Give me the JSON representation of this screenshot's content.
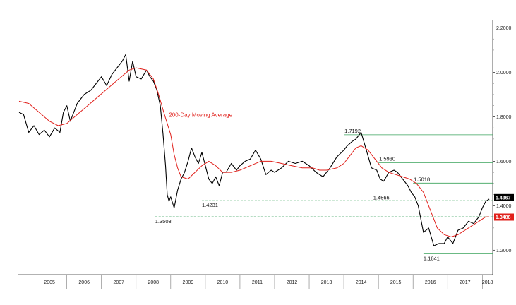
{
  "chart_data": {
    "type": "line",
    "title": "",
    "xlabel": "",
    "ylabel": "",
    "xlim": [
      2004.6,
      2018.3
    ],
    "ylim": [
      1.09,
      2.23
    ],
    "y_ticks": [
      {
        "value": 1.2,
        "label": "1.2000"
      },
      {
        "value": 1.4,
        "label": "1.4000"
      },
      {
        "value": 1.6,
        "label": "1.6000"
      },
      {
        "value": 1.8,
        "label": "1.8000"
      },
      {
        "value": 2.0,
        "label": "2.0000"
      },
      {
        "value": 2.2,
        "label": "2.2000"
      }
    ],
    "x_years": [
      "2005",
      "2006",
      "2007",
      "2008",
      "2009",
      "2010",
      "2011",
      "2012",
      "2013",
      "2014",
      "2015",
      "2016",
      "2017",
      "2018"
    ],
    "grid": false,
    "axis_position": "right",
    "series": [
      {
        "name": "",
        "color": "#000000",
        "x": [
          2004.62,
          2004.75,
          2004.9,
          2005.05,
          2005.2,
          2005.35,
          2005.5,
          2005.65,
          2005.8,
          2005.9,
          2006.0,
          2006.1,
          2006.3,
          2006.5,
          2006.7,
          2006.9,
          2007.0,
          2007.15,
          2007.3,
          2007.45,
          2007.6,
          2007.7,
          2007.8,
          2007.9,
          2008.0,
          2008.15,
          2008.3,
          2008.4,
          2008.5,
          2008.6,
          2008.7,
          2008.78,
          2008.85,
          2008.9,
          2008.95,
          2009.0,
          2009.1,
          2009.2,
          2009.3,
          2009.4,
          2009.5,
          2009.6,
          2009.7,
          2009.8,
          2009.9,
          2010.0,
          2010.1,
          2010.2,
          2010.3,
          2010.4,
          2010.5,
          2010.6,
          2010.75,
          2010.9,
          2011.0,
          2011.15,
          2011.3,
          2011.45,
          2011.6,
          2011.75,
          2011.9,
          2012.0,
          2012.2,
          2012.4,
          2012.6,
          2012.8,
          2013.0,
          2013.2,
          2013.4,
          2013.6,
          2013.8,
          2014.0,
          2014.1,
          2014.25,
          2014.35,
          2014.5,
          2014.65,
          2014.8,
          2014.95,
          2015.05,
          2015.15,
          2015.3,
          2015.45,
          2015.55,
          2015.7,
          2015.85,
          2015.95,
          2016.05,
          2016.15,
          2016.3,
          2016.45,
          2016.6,
          2016.75,
          2016.9,
          2017.0,
          2017.15,
          2017.3,
          2017.45,
          2017.6,
          2017.75,
          2017.9,
          2018.0,
          2018.1,
          2018.2
        ],
        "y": [
          1.82,
          1.81,
          1.73,
          1.76,
          1.72,
          1.74,
          1.71,
          1.75,
          1.73,
          1.82,
          1.85,
          1.78,
          1.86,
          1.9,
          1.92,
          1.96,
          1.98,
          1.94,
          1.99,
          2.02,
          2.05,
          2.08,
          1.96,
          2.05,
          1.98,
          1.97,
          2.01,
          1.98,
          1.96,
          1.92,
          1.85,
          1.72,
          1.58,
          1.45,
          1.42,
          1.44,
          1.39,
          1.47,
          1.52,
          1.55,
          1.6,
          1.66,
          1.62,
          1.59,
          1.64,
          1.58,
          1.52,
          1.5,
          1.53,
          1.49,
          1.55,
          1.55,
          1.59,
          1.56,
          1.58,
          1.6,
          1.61,
          1.65,
          1.61,
          1.54,
          1.56,
          1.55,
          1.57,
          1.6,
          1.59,
          1.6,
          1.58,
          1.55,
          1.53,
          1.57,
          1.62,
          1.65,
          1.67,
          1.69,
          1.7,
          1.73,
          1.65,
          1.57,
          1.56,
          1.52,
          1.51,
          1.55,
          1.56,
          1.55,
          1.52,
          1.49,
          1.46,
          1.44,
          1.4,
          1.28,
          1.3,
          1.22,
          1.23,
          1.23,
          1.26,
          1.23,
          1.29,
          1.3,
          1.33,
          1.32,
          1.35,
          1.39,
          1.42,
          1.43
        ]
      },
      {
        "name": "200-Day Moving Average",
        "color": "#e0201b",
        "x": [
          2004.62,
          2004.9,
          2005.2,
          2005.5,
          2005.75,
          2006.0,
          2006.3,
          2006.6,
          2006.9,
          2007.2,
          2007.5,
          2007.8,
          2008.0,
          2008.3,
          2008.5,
          2008.65,
          2008.8,
          2009.0,
          2009.1,
          2009.2,
          2009.3,
          2009.5,
          2009.7,
          2009.9,
          2010.1,
          2010.3,
          2010.5,
          2010.75,
          2011.0,
          2011.3,
          2011.6,
          2011.9,
          2012.2,
          2012.5,
          2012.8,
          2013.1,
          2013.3,
          2013.5,
          2013.8,
          2014.0,
          2014.2,
          2014.35,
          2014.5,
          2014.7,
          2014.9,
          2015.1,
          2015.3,
          2015.5,
          2015.7,
          2015.9,
          2016.1,
          2016.3,
          2016.5,
          2016.7,
          2016.9,
          2017.1,
          2017.3,
          2017.5,
          2017.7,
          2017.9,
          2018.1,
          2018.2
        ],
        "y": [
          1.87,
          1.86,
          1.82,
          1.78,
          1.76,
          1.77,
          1.81,
          1.85,
          1.89,
          1.93,
          1.97,
          2.01,
          2.02,
          2.01,
          1.97,
          1.9,
          1.82,
          1.72,
          1.63,
          1.57,
          1.53,
          1.52,
          1.55,
          1.58,
          1.6,
          1.58,
          1.55,
          1.55,
          1.56,
          1.58,
          1.6,
          1.6,
          1.59,
          1.58,
          1.57,
          1.57,
          1.56,
          1.56,
          1.57,
          1.59,
          1.63,
          1.66,
          1.67,
          1.65,
          1.61,
          1.57,
          1.55,
          1.54,
          1.53,
          1.52,
          1.5,
          1.46,
          1.38,
          1.3,
          1.27,
          1.26,
          1.27,
          1.29,
          1.31,
          1.33,
          1.35,
          1.35
        ]
      }
    ],
    "annotations": [
      {
        "label": "200-Day Moving Average",
        "x": 2008.95,
        "y": 1.8,
        "color": "#e0201b"
      },
      {
        "label": "1.7192",
        "x": 2014.0,
        "y": 1.7192,
        "level_line": true,
        "line_color": "#3aa35c",
        "dashed": false
      },
      {
        "label": "1.5930",
        "x": 2015.0,
        "y": 1.593,
        "level_line": true,
        "line_color": "#3aa35c",
        "dashed": false
      },
      {
        "label": "1.5018",
        "x": 2016.0,
        "y": 1.5018,
        "level_line": true,
        "line_color": "#3aa35c",
        "dashed": false
      },
      {
        "label": "1.4566",
        "x": 2014.85,
        "y": 1.4566,
        "level_line": true,
        "line_color": "#3aa35c",
        "dashed": true
      },
      {
        "label": "1.4231",
        "x": 2009.9,
        "y": 1.4231,
        "level_line": true,
        "line_color": "#3aa35c",
        "dashed": true
      },
      {
        "label": "1.3503",
        "x": 2008.55,
        "y": 1.3503,
        "level_line": true,
        "line_color": "#3aa35c",
        "dashed": true
      },
      {
        "label": "1.1841",
        "x": 2016.3,
        "y": 1.1841,
        "level_line": true,
        "line_color": "#3aa35c",
        "dashed": false
      }
    ],
    "last_value_tags": [
      {
        "label": "1.4367",
        "value": 1.4367,
        "color": "#000000"
      },
      {
        "label": "1.3488",
        "value": 1.3488,
        "color": "#e0201b"
      }
    ]
  }
}
